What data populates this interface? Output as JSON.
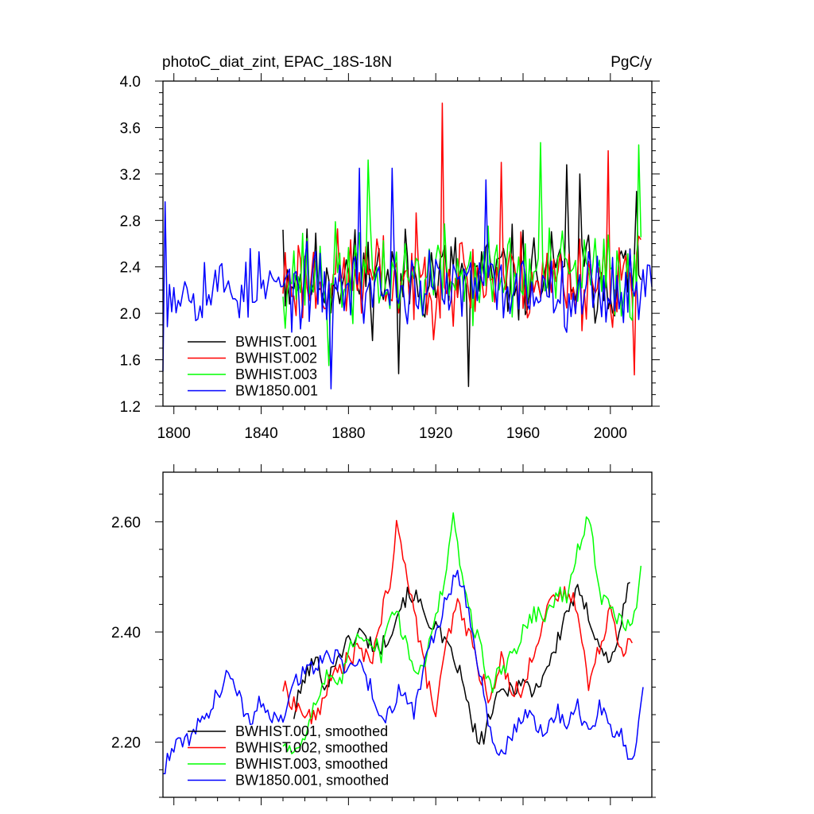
{
  "chart_data": [
    {
      "type": "line",
      "title": "photoC_diat_zint, EPAC_18S-18N",
      "units": "PgC/y",
      "xlim": [
        1795,
        2019
      ],
      "ylim": [
        1.2,
        4.0
      ],
      "xticks": [
        1800,
        1840,
        1880,
        1920,
        1960,
        2000
      ],
      "yticks": [
        1.2,
        1.6,
        2.0,
        2.4,
        2.8,
        3.2,
        3.6,
        4.0
      ],
      "ytick_labels": [
        "1.2",
        "1.6",
        "2.0",
        "2.4",
        "2.8",
        "3.2",
        "3.6",
        "4.0"
      ],
      "legend_position": "bottom-left",
      "series": [
        {
          "name": "BWHIST.001",
          "color": "#000000",
          "x_start": 1850,
          "x_end": 2014,
          "center": 2.32,
          "amplitude": 0.38,
          "seed": 11,
          "peaks": [
            [
              1850,
              2.72
            ],
            [
              1903,
              1.48
            ],
            [
              1935,
              1.37
            ],
            [
              1980,
              3.28
            ],
            [
              1986,
              3.2
            ],
            [
              2012,
              3.05
            ]
          ]
        },
        {
          "name": "BWHIST.002",
          "color": "#ff0000",
          "x_start": 1850,
          "x_end": 2014,
          "center": 2.3,
          "amplitude": 0.38,
          "seed": 23,
          "peaks": [
            [
              1923,
              3.81
            ],
            [
              1950,
              3.3
            ],
            [
              1999,
              3.4
            ],
            [
              2011,
              1.47
            ]
          ]
        },
        {
          "name": "BWHIST.003",
          "color": "#00ff00",
          "x_start": 1850,
          "x_end": 2014,
          "center": 2.33,
          "amplitude": 0.38,
          "seed": 37,
          "peaks": [
            [
              1889,
              3.32
            ],
            [
              1968,
              3.47
            ],
            [
              2013,
              3.45
            ],
            [
              1871,
              1.55
            ]
          ]
        },
        {
          "name": "BW1850.001",
          "color": "#0000ff",
          "x_start": 1795,
          "x_end": 2019,
          "center": 2.22,
          "amplitude": 0.3,
          "seed": 53,
          "peaks": [
            [
              1796,
              2.96
            ],
            [
              1795,
              1.5
            ],
            [
              1872,
              1.35
            ],
            [
              1885,
              3.25
            ],
            [
              1900,
              3.25
            ],
            [
              1943,
              3.15
            ]
          ]
        }
      ]
    },
    {
      "type": "line",
      "xlim": [
        1795,
        2019
      ],
      "ylim": [
        2.1,
        2.69
      ],
      "xticks": [
        1800,
        1840,
        1880,
        1920,
        1960,
        2000
      ],
      "yticks": [
        2.2,
        2.4,
        2.6
      ],
      "ytick_labels": [
        "2.20",
        "2.40",
        "2.60"
      ],
      "legend_position": "bottom-left",
      "series": [
        {
          "name": "BWHIST.001, smoothed",
          "color": "#000000",
          "x": [
            1855,
            1860,
            1865,
            1870,
            1875,
            1880,
            1885,
            1890,
            1895,
            1900,
            1905,
            1910,
            1915,
            1920,
            1925,
            1930,
            1935,
            1940,
            1945,
            1950,
            1955,
            1960,
            1965,
            1970,
            1975,
            1980,
            1985,
            1990,
            1995,
            2000,
            2005,
            2009
          ],
          "y": [
            2.25,
            2.32,
            2.35,
            2.3,
            2.36,
            2.38,
            2.4,
            2.38,
            2.37,
            2.41,
            2.46,
            2.47,
            2.43,
            2.41,
            2.37,
            2.34,
            2.26,
            2.19,
            2.25,
            2.29,
            2.3,
            2.31,
            2.29,
            2.33,
            2.37,
            2.44,
            2.47,
            2.43,
            2.38,
            2.34,
            2.42,
            2.49
          ]
        },
        {
          "name": "BWHIST.002, smoothed",
          "color": "#ff0000",
          "x": [
            1850,
            1855,
            1860,
            1865,
            1870,
            1875,
            1880,
            1885,
            1890,
            1895,
            1900,
            1902,
            1906,
            1910,
            1915,
            1920,
            1925,
            1930,
            1935,
            1940,
            1945,
            1950,
            1955,
            1960,
            1965,
            1970,
            1975,
            1980,
            1985,
            1990,
            1995,
            2000,
            2005,
            2010
          ],
          "y": [
            2.3,
            2.27,
            2.25,
            2.24,
            2.3,
            2.33,
            2.35,
            2.37,
            2.34,
            2.43,
            2.5,
            2.59,
            2.53,
            2.44,
            2.33,
            2.25,
            2.38,
            2.45,
            2.4,
            2.33,
            2.27,
            2.35,
            2.3,
            2.29,
            2.37,
            2.43,
            2.46,
            2.47,
            2.45,
            2.3,
            2.37,
            2.45,
            2.37,
            2.38
          ]
        },
        {
          "name": "BWHIST.003, smoothed",
          "color": "#00ff00",
          "x": [
            1850,
            1855,
            1860,
            1865,
            1870,
            1875,
            1880,
            1885,
            1890,
            1895,
            1900,
            1905,
            1910,
            1915,
            1920,
            1925,
            1928,
            1932,
            1935,
            1940,
            1945,
            1950,
            1955,
            1960,
            1965,
            1970,
            1975,
            1980,
            1985,
            1990,
            1995,
            2000,
            2005,
            2010,
            2014
          ],
          "y": [
            2.2,
            2.18,
            2.22,
            2.27,
            2.32,
            2.29,
            2.36,
            2.4,
            2.39,
            2.36,
            2.45,
            2.4,
            2.33,
            2.35,
            2.42,
            2.52,
            2.6,
            2.51,
            2.44,
            2.38,
            2.3,
            2.33,
            2.36,
            2.4,
            2.44,
            2.42,
            2.47,
            2.46,
            2.55,
            2.61,
            2.47,
            2.44,
            2.42,
            2.4,
            2.52
          ]
        },
        {
          "name": "BW1850.001, smoothed",
          "color": "#0000ff",
          "x": [
            1795,
            1800,
            1805,
            1810,
            1815,
            1820,
            1825,
            1830,
            1835,
            1840,
            1845,
            1850,
            1855,
            1860,
            1865,
            1870,
            1875,
            1880,
            1885,
            1890,
            1895,
            1900,
            1905,
            1910,
            1915,
            1920,
            1925,
            1930,
            1935,
            1940,
            1945,
            1950,
            1955,
            1960,
            1965,
            1970,
            1975,
            1980,
            1985,
            1990,
            1995,
            2000,
            2005,
            2010,
            2015
          ],
          "y": [
            2.15,
            2.19,
            2.2,
            2.22,
            2.25,
            2.29,
            2.32,
            2.28,
            2.23,
            2.28,
            2.24,
            2.25,
            2.31,
            2.33,
            2.34,
            2.35,
            2.36,
            2.33,
            2.35,
            2.3,
            2.24,
            2.27,
            2.3,
            2.25,
            2.35,
            2.4,
            2.46,
            2.51,
            2.45,
            2.33,
            2.22,
            2.17,
            2.21,
            2.25,
            2.24,
            2.2,
            2.26,
            2.24,
            2.27,
            2.21,
            2.26,
            2.23,
            2.21,
            2.16,
            2.3
          ]
        }
      ]
    }
  ]
}
